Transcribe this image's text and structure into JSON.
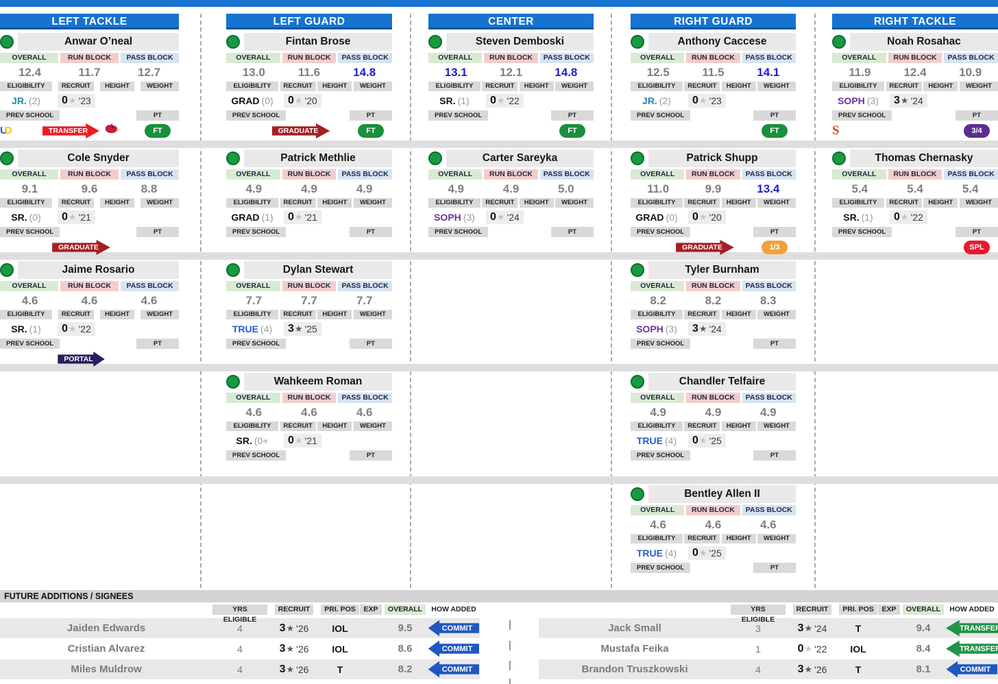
{
  "top": {
    "positions": [
      "LEFT TACKLE",
      "LEFT GUARD",
      "CENTER",
      "RIGHT GUARD",
      "RIGHT TACKLE"
    ]
  },
  "labels": {
    "overall": "OVERALL",
    "run_block": "RUN BLOCK",
    "pass_block": "PASS BLOCK",
    "eligibility": "ELIGIBILITY",
    "recruit": "RECRUIT",
    "height": "HEIGHT",
    "weight": "WEIGHT",
    "prev_school": "PREV SCHOOL",
    "pt": "PT",
    "future_header": "FUTURE ADDITIONS / SIGNEES",
    "table_headers": [
      "YRS ELIGIBLE",
      "RECRUIT",
      "PRI. POS",
      "EXP",
      "OVERALL",
      "HOW ADDED"
    ]
  },
  "colors": {
    "header_blue": "#1673d0",
    "value_blue": "#2121cc",
    "value_gray": "#7f7f7f",
    "overall_header_bg": "#d9ead3",
    "run_block_header_bg": "#f4cccc",
    "pass_block_header_bg": "#d7e3f1",
    "transfer_red": "#ee1c25",
    "graduate_red": "#a51e22",
    "portal_navy": "#2b1d5e",
    "commit_blue": "#1f57c4",
    "transfer_green": "#219447",
    "ft_green": "#1a8f3c",
    "pt_purple": "#5b2d8e",
    "pt_orange": "#f0a33a",
    "pt_red": "#e8192c"
  },
  "depth_rows": [
    [
      {
        "name": "Anwar O’neal",
        "stats": {
          "overall": "12.4",
          "run_block": "11.7",
          "pass_block": "12.7"
        },
        "hot": {
          "overall": false,
          "run_block": false,
          "pass_block": false
        },
        "elig": "JR.",
        "elig_style": "jr",
        "elig_note": "(2)",
        "stars": "0",
        "star_filled": false,
        "class_year": "'23",
        "prev_logo": "delaware-logo",
        "arrow": {
          "label": "TRANSFER",
          "type": "transfer"
        },
        "arrow_logo": "louisville-cardinal-logo",
        "pt": {
          "label": "FT",
          "type": "ft"
        }
      },
      {
        "name": "Fintan Brose",
        "stats": {
          "overall": "13.0",
          "run_block": "11.6",
          "pass_block": "14.8"
        },
        "hot": {
          "overall": false,
          "run_block": false,
          "pass_block": true
        },
        "elig": "GRAD",
        "elig_style": "plain",
        "elig_note": "(0)",
        "stars": "0",
        "star_filled": false,
        "class_year": "'20",
        "prev_logo": null,
        "arrow": {
          "label": "GRADUATE",
          "type": "graduate"
        },
        "arrow_logo": null,
        "pt": {
          "label": "FT",
          "type": "ft"
        }
      },
      {
        "name": "Steven Demboski",
        "stats": {
          "overall": "13.1",
          "run_block": "12.1",
          "pass_block": "14.8"
        },
        "hot": {
          "overall": true,
          "run_block": false,
          "pass_block": true
        },
        "elig": "SR.",
        "elig_style": "plain",
        "elig_note": "(1)",
        "stars": "0",
        "star_filled": false,
        "class_year": "'22",
        "prev_logo": null,
        "arrow": null,
        "arrow_logo": null,
        "pt": {
          "label": "FT",
          "type": "ft"
        }
      },
      {
        "name": "Anthony Caccese",
        "stats": {
          "overall": "12.5",
          "run_block": "11.5",
          "pass_block": "14.1"
        },
        "hot": {
          "overall": false,
          "run_block": false,
          "pass_block": true
        },
        "elig": "JR.",
        "elig_style": "jr",
        "elig_note": "(2)",
        "stars": "0",
        "star_filled": false,
        "class_year": "'23",
        "prev_logo": null,
        "arrow": null,
        "arrow_logo": null,
        "pt": {
          "label": "FT",
          "type": "ft"
        }
      },
      {
        "name": "Noah Rosahac",
        "stats": {
          "overall": "11.9",
          "run_block": "12.4",
          "pass_block": "10.9"
        },
        "hot": {
          "overall": false,
          "run_block": false,
          "pass_block": false
        },
        "elig": "SOPH",
        "elig_style": "soph",
        "elig_note": "(3)",
        "stars": "3",
        "star_filled": true,
        "class_year": "'24",
        "prev_logo": "syracuse-logo",
        "arrow": null,
        "arrow_logo": null,
        "pt": {
          "label": "3/4",
          "type": "q34"
        }
      }
    ],
    [
      {
        "name": "Cole Snyder",
        "stats": {
          "overall": "9.1",
          "run_block": "9.6",
          "pass_block": "8.8"
        },
        "hot": {
          "overall": false,
          "run_block": false,
          "pass_block": false
        },
        "elig": "SR.",
        "elig_style": "plain",
        "elig_note": "(0)",
        "stars": "0",
        "star_filled": false,
        "class_year": "'21",
        "prev_logo": null,
        "arrow": {
          "label": "GRADUATE",
          "type": "graduate"
        },
        "arrow_logo": null,
        "pt": null
      },
      {
        "name": "Patrick Methlie",
        "stats": {
          "overall": "4.9",
          "run_block": "4.9",
          "pass_block": "4.9"
        },
        "hot": {
          "overall": false,
          "run_block": false,
          "pass_block": false
        },
        "elig": "GRAD",
        "elig_style": "plain",
        "elig_note": "(1)",
        "stars": "0",
        "star_filled": false,
        "class_year": "'21",
        "prev_logo": null,
        "arrow": null,
        "arrow_logo": null,
        "pt": null
      },
      {
        "name": "Carter Sareyka",
        "stats": {
          "overall": "4.9",
          "run_block": "4.9",
          "pass_block": "5.0"
        },
        "hot": {
          "overall": false,
          "run_block": false,
          "pass_block": false
        },
        "elig": "SOPH",
        "elig_style": "soph",
        "elig_note": "(3)",
        "stars": "0",
        "star_filled": false,
        "class_year": "'24",
        "prev_logo": null,
        "arrow": null,
        "arrow_logo": null,
        "pt": null
      },
      {
        "name": "Patrick Shupp",
        "stats": {
          "overall": "11.0",
          "run_block": "9.9",
          "pass_block": "13.4"
        },
        "hot": {
          "overall": false,
          "run_block": false,
          "pass_block": true
        },
        "elig": "GRAD",
        "elig_style": "plain",
        "elig_note": "(0)",
        "stars": "0",
        "star_filled": false,
        "class_year": "'20",
        "prev_logo": null,
        "arrow": {
          "label": "GRADUATE",
          "type": "graduate"
        },
        "arrow_logo": null,
        "pt": {
          "label": "1/3",
          "type": "q13"
        }
      },
      {
        "name": "Thomas Chernasky",
        "stats": {
          "overall": "5.4",
          "run_block": "5.4",
          "pass_block": "5.4"
        },
        "hot": {
          "overall": false,
          "run_block": false,
          "pass_block": false
        },
        "elig": "SR.",
        "elig_style": "plain",
        "elig_note": "(1)",
        "stars": "0",
        "star_filled": false,
        "class_year": "'22",
        "prev_logo": null,
        "arrow": null,
        "arrow_logo": null,
        "pt": {
          "label": "SPL",
          "type": "spl"
        }
      }
    ],
    [
      {
        "name": "Jaime Rosario",
        "stats": {
          "overall": "4.6",
          "run_block": "4.6",
          "pass_block": "4.6"
        },
        "hot": {
          "overall": false,
          "run_block": false,
          "pass_block": false
        },
        "elig": "SR.",
        "elig_style": "plain",
        "elig_note": "(1)",
        "stars": "0",
        "star_filled": false,
        "class_year": "'22",
        "prev_logo": null,
        "arrow": {
          "label": "PORTAL",
          "type": "portal"
        },
        "arrow_logo": null,
        "pt": null
      },
      {
        "name": "Dylan Stewart",
        "stats": {
          "overall": "7.7",
          "run_block": "7.7",
          "pass_block": "7.7"
        },
        "hot": {
          "overall": false,
          "run_block": false,
          "pass_block": false
        },
        "elig": "TRUE",
        "elig_style": "true",
        "elig_note": "(4)",
        "stars": "3",
        "star_filled": true,
        "class_year": "'25",
        "prev_logo": null,
        "arrow": null,
        "arrow_logo": null,
        "pt": null
      },
      null,
      {
        "name": "Tyler Burnham",
        "stats": {
          "overall": "8.2",
          "run_block": "8.2",
          "pass_block": "8.3"
        },
        "hot": {
          "overall": false,
          "run_block": false,
          "pass_block": false
        },
        "elig": "SOPH",
        "elig_style": "soph",
        "elig_note": "(3)",
        "stars": "3",
        "star_filled": true,
        "class_year": "'24",
        "prev_logo": null,
        "arrow": null,
        "arrow_logo": null,
        "pt": null
      },
      null
    ],
    [
      null,
      {
        "name": "Wahkeem Roman",
        "stats": {
          "overall": "4.6",
          "run_block": "4.6",
          "pass_block": "4.6"
        },
        "hot": {
          "overall": false,
          "run_block": false,
          "pass_block": false
        },
        "elig": "SR.",
        "elig_style": "plain",
        "elig_note": "(0+",
        "stars": "0",
        "star_filled": false,
        "class_year": "'21",
        "prev_logo": null,
        "arrow": null,
        "arrow_logo": null,
        "pt": null
      },
      null,
      {
        "name": "Chandler Telfaire",
        "stats": {
          "overall": "4.9",
          "run_block": "4.9",
          "pass_block": "4.9"
        },
        "hot": {
          "overall": false,
          "run_block": false,
          "pass_block": false
        },
        "elig": "TRUE",
        "elig_style": "true",
        "elig_note": "(4)",
        "stars": "0",
        "star_filled": false,
        "class_year": "'25",
        "prev_logo": null,
        "arrow": null,
        "arrow_logo": null,
        "pt": null
      },
      null
    ],
    [
      null,
      null,
      null,
      {
        "name": "Bentley Allen II",
        "stats": {
          "overall": "4.6",
          "run_block": "4.6",
          "pass_block": "4.6"
        },
        "hot": {
          "overall": false,
          "run_block": false,
          "pass_block": false
        },
        "elig": "TRUE",
        "elig_style": "true",
        "elig_note": "(4)",
        "stars": "0",
        "star_filled": false,
        "class_year": "'25",
        "prev_logo": null,
        "arrow": null,
        "arrow_logo": null,
        "pt": null
      },
      null
    ]
  ],
  "future": {
    "left_rows": [
      {
        "name": "Jaiden Edwards",
        "yrs": "4",
        "stars": "3",
        "star_filled": true,
        "year": "'26",
        "pos": "IOL",
        "exp": "",
        "overall": "9.5",
        "how": {
          "label": "COMMIT",
          "type": "commit"
        },
        "logo": null
      },
      {
        "name": "Cristian Alvarez",
        "yrs": "4",
        "stars": "3",
        "star_filled": true,
        "year": "'26",
        "pos": "IOL",
        "exp": "",
        "overall": "8.6",
        "how": {
          "label": "COMMIT",
          "type": "commit"
        },
        "logo": null
      },
      {
        "name": "Miles Muldrow",
        "yrs": "4",
        "stars": "3",
        "star_filled": true,
        "year": "'26",
        "pos": "T",
        "exp": "",
        "overall": "8.2",
        "how": {
          "label": "COMMIT",
          "type": "commit"
        },
        "logo": null
      }
    ],
    "right_rows": [
      {
        "name": "Jack Small",
        "yrs": "3",
        "stars": "3",
        "star_filled": true,
        "year": "'24",
        "pos": "T",
        "exp": "",
        "overall": "9.4",
        "how": {
          "label": "TRANSFER",
          "type": "transfer-green"
        },
        "logo": "duke-logo"
      },
      {
        "name": "Mustafa Feika",
        "yrs": "1",
        "stars": "0",
        "star_filled": false,
        "year": "'22",
        "pos": "IOL",
        "exp": "",
        "overall": "8.4",
        "how": {
          "label": "TRANSFER",
          "type": "transfer-green"
        },
        "logo": null
      },
      {
        "name": "Brandon Truszkowski",
        "yrs": "4",
        "stars": "3",
        "star_filled": true,
        "year": "'26",
        "pos": "T",
        "exp": "",
        "overall": "8.1",
        "how": {
          "label": "COMMIT",
          "type": "commit"
        },
        "logo": null
      }
    ]
  }
}
